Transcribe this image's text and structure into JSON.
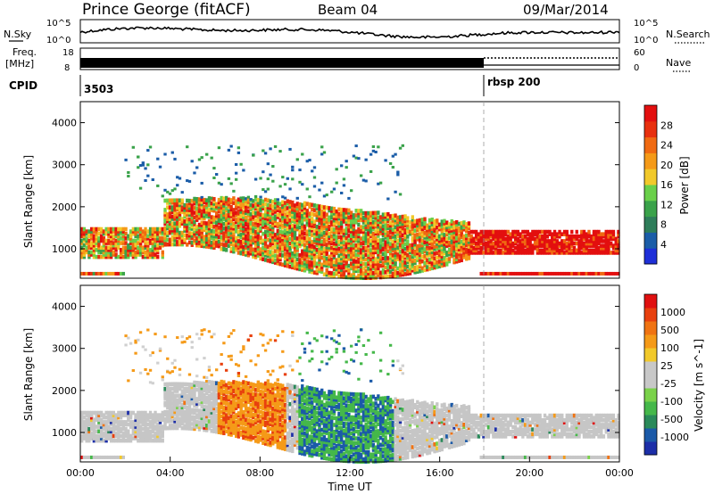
{
  "header": {
    "station": "Prince George (fitACF)",
    "beam": "Beam 04",
    "date": "09/Mar/2014"
  },
  "panels": {
    "nsky_label": "N.Sky",
    "nsearch_label": "N.Search",
    "nsky_ticks": [
      "10^5",
      "10^0"
    ],
    "nsearch_ticks": [
      "10^5",
      "10^0"
    ],
    "freq_label": "Freq.",
    "freq_unit": "[MHz]",
    "freq_ticks": [
      "18",
      "8"
    ],
    "nave_label": "Nave",
    "nave_ticks": [
      "60",
      "0"
    ],
    "cpid_label": "CPID",
    "cpid_values": [
      "3503",
      "rbsp 200"
    ]
  },
  "chart_data": [
    {
      "type": "heatmap",
      "name": "power",
      "ylabel": "Slant Range [km]",
      "xlabel": "",
      "ylim": [
        300,
        4500
      ],
      "yticks": [
        1000,
        2000,
        3000,
        4000
      ],
      "colorbar": {
        "label": "Power [dB]",
        "ticks": [
          "28",
          "24",
          "20",
          "16",
          "12",
          "8",
          "4"
        ],
        "colors": [
          "#1e2fd8",
          "#1b5da8",
          "#2e7d5a",
          "#3aa24a",
          "#6ad04a",
          "#f2c92a",
          "#f59a18",
          "#f06a12",
          "#e8300e",
          "#e30f0f"
        ]
      }
    },
    {
      "type": "heatmap",
      "name": "velocity",
      "ylabel": "Slant Range [km]",
      "xlabel": "Time UT",
      "ylim": [
        300,
        4500
      ],
      "yticks": [
        1000,
        2000,
        3000,
        4000
      ],
      "xticks": [
        "00:00",
        "04:00",
        "08:00",
        "12:00",
        "16:00",
        "20:00",
        "00:00"
      ],
      "colorbar": {
        "label": "Velocity [m s^-1]",
        "ticks": [
          "1000",
          "500",
          "100",
          "25",
          "-25",
          "-100",
          "-500",
          "-1000"
        ],
        "colors": [
          "#1c2ea8",
          "#1b5aa8",
          "#2a8a5a",
          "#45b84a",
          "#7ad24a",
          "#c8c8c8",
          "#c8c8c8",
          "#f2c92a",
          "#f59a18",
          "#f07312",
          "#e8400e",
          "#e01010"
        ]
      }
    }
  ]
}
